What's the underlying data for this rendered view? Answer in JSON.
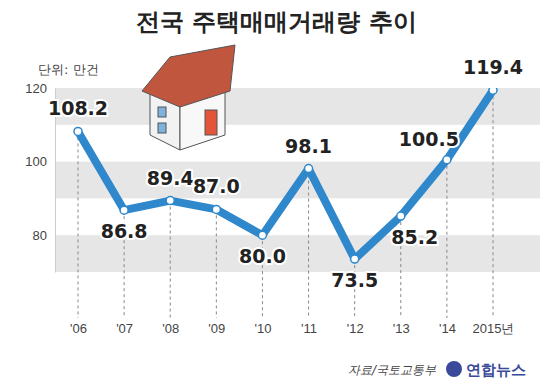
{
  "chart_data": {
    "type": "line",
    "title": "전국 주택매매거래량 추이",
    "ylabel": "단위: 만건",
    "source": "자료/국토교통부",
    "credit": "연합뉴스",
    "categories": [
      "'06",
      "'07",
      "'08",
      "'09",
      "'10",
      "'11",
      "'12",
      "'13",
      "'14",
      "2015년"
    ],
    "values": [
      108.2,
      86.8,
      89.4,
      87.0,
      80.0,
      98.1,
      73.5,
      85.2,
      100.5,
      119.4
    ],
    "value_labels": [
      "108.2",
      "86.8",
      "89.4",
      "87.0",
      "80.0",
      "98.1",
      "73.5",
      "85.2",
      "100.5",
      "119.4"
    ],
    "color": "#2f88cb",
    "marker": "circle",
    "ylim": [
      70,
      120
    ],
    "yticks": [
      80,
      100,
      120
    ],
    "grid": true,
    "data_labels": true
  }
}
